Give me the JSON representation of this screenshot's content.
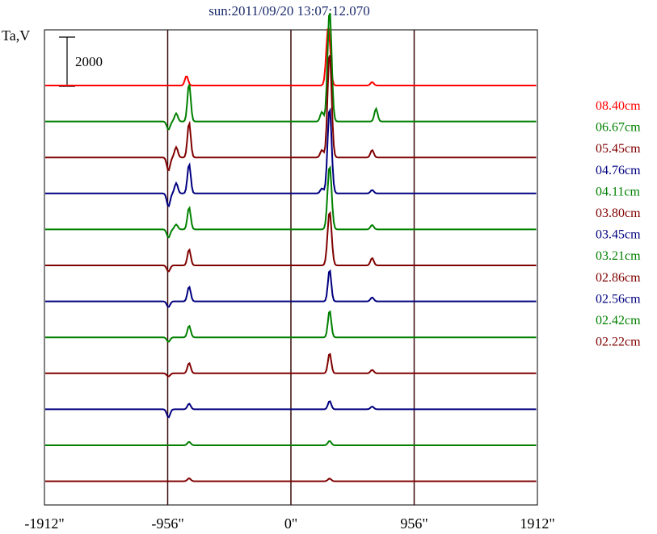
{
  "chart_data": {
    "type": "line",
    "title": "sun:2011/09/20 13:07:12.070",
    "ylabel": "Ta,V",
    "scale_bar_label": "2000",
    "scale_bar_value": 2000,
    "xlim": [
      -1912,
      1912
    ],
    "x_ticks": [
      {
        "value": -1912,
        "label": "-1912\""
      },
      {
        "value": -956,
        "label": "-956\""
      },
      {
        "value": 0,
        "label": "0\""
      },
      {
        "value": 956,
        "label": "956\""
      },
      {
        "value": 1912,
        "label": "1912\""
      }
    ],
    "vertical_markers": [
      -956,
      0,
      956
    ],
    "grid": false,
    "legend_position": "right",
    "series": [
      {
        "name": "08.40cm",
        "color": "#ff0000",
        "peaks": [
          [
            -810,
            390
          ],
          [
            290,
            2400
          ],
          [
            630,
            140
          ]
        ]
      },
      {
        "name": "06.67cm",
        "color": "#008000",
        "peaks": [
          [
            -950,
            -330
          ],
          [
            -890,
            330
          ],
          [
            -790,
            1550
          ],
          [
            240,
            390
          ],
          [
            300,
            4550
          ],
          [
            660,
            520
          ]
        ]
      },
      {
        "name": "05.45cm",
        "color": "#800000",
        "peaks": [
          [
            -950,
            -530
          ],
          [
            -890,
            420
          ],
          [
            -790,
            1420
          ],
          [
            240,
            300
          ],
          [
            300,
            4300
          ],
          [
            630,
            300
          ]
        ]
      },
      {
        "name": "04.76cm",
        "color": "#000080",
        "peaks": [
          [
            -950,
            -530
          ],
          [
            -890,
            420
          ],
          [
            -790,
            1200
          ],
          [
            240,
            200
          ],
          [
            300,
            3500
          ],
          [
            630,
            140
          ]
        ]
      },
      {
        "name": "04.11cm",
        "color": "#008000",
        "peaks": [
          [
            -950,
            -330
          ],
          [
            -890,
            200
          ],
          [
            -790,
            900
          ],
          [
            300,
            2600
          ],
          [
            630,
            180
          ]
        ]
      },
      {
        "name": "03.80cm",
        "color": "#800000",
        "peaks": [
          [
            -950,
            -250
          ],
          [
            -790,
            650
          ],
          [
            300,
            2200
          ],
          [
            630,
            300
          ]
        ]
      },
      {
        "name": "03.45cm",
        "color": "#000080",
        "peaks": [
          [
            -950,
            -230
          ],
          [
            -790,
            600
          ],
          [
            300,
            1300
          ],
          [
            630,
            160
          ]
        ]
      },
      {
        "name": "03.21cm",
        "color": "#008000",
        "peaks": [
          [
            -950,
            -180
          ],
          [
            -790,
            470
          ],
          [
            300,
            1100
          ]
        ]
      },
      {
        "name": "02.86cm",
        "color": "#800000",
        "peaks": [
          [
            -950,
            -130
          ],
          [
            -790,
            420
          ],
          [
            300,
            820
          ],
          [
            630,
            140
          ]
        ]
      },
      {
        "name": "02.56cm",
        "color": "#000080",
        "peaks": [
          [
            -950,
            -330
          ],
          [
            -790,
            230
          ],
          [
            300,
            340
          ],
          [
            630,
            110
          ]
        ]
      },
      {
        "name": "02.42cm",
        "color": "#008000",
        "peaks": [
          [
            -790,
            140
          ],
          [
            300,
            180
          ]
        ]
      },
      {
        "name": "02.22cm",
        "color": "#800000",
        "peaks": [
          [
            -790,
            120
          ],
          [
            300,
            110
          ]
        ]
      }
    ]
  }
}
